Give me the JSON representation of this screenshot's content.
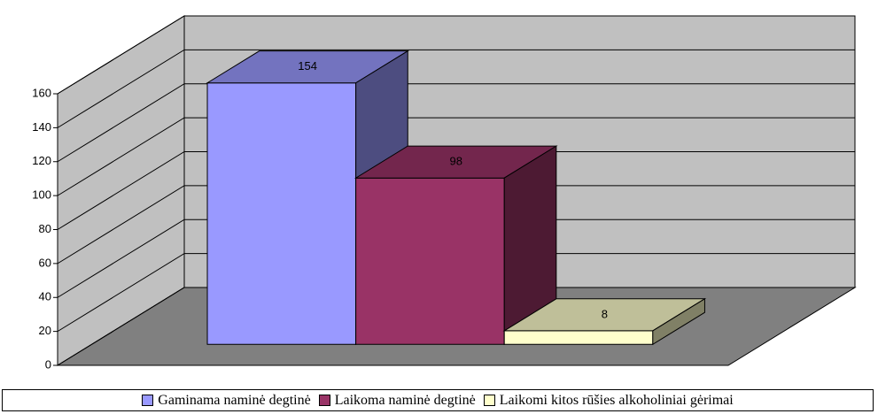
{
  "chart_data": {
    "type": "bar",
    "categories": [
      null
    ],
    "series": [
      {
        "name": "Gaminama naminė degtinė",
        "color": "#9999ff",
        "values": [
          154
        ]
      },
      {
        "name": "Laikoma naminė degtinė",
        "color": "#993366",
        "values": [
          98
        ]
      },
      {
        "name": "Laikomi kitos rūšies alkoholiniai gėrimai",
        "color": "#ffffcc",
        "values": [
          8
        ]
      }
    ],
    "ylim": [
      0,
      160
    ],
    "yticks": [
      0,
      20,
      40,
      60,
      80,
      100,
      120,
      140,
      160
    ],
    "grid": true,
    "legend": "bottom"
  }
}
